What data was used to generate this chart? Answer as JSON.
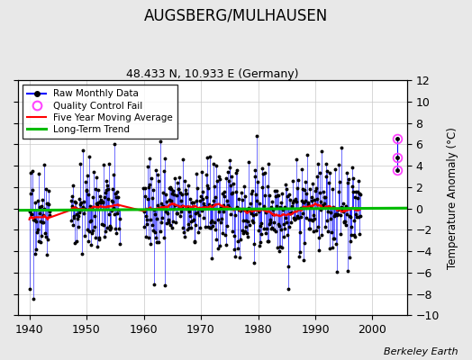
{
  "title": "AUGSBERG/MULHAUSEN",
  "subtitle": "48.433 N, 10.933 E (Germany)",
  "ylabel": "Temperature Anomaly (°C)",
  "credit": "Berkeley Earth",
  "xlim": [
    1938,
    2006
  ],
  "ylim": [
    -10,
    12
  ],
  "yticks": [
    -10,
    -8,
    -6,
    -4,
    -2,
    0,
    2,
    4,
    6,
    8,
    10,
    12
  ],
  "xticks": [
    1940,
    1950,
    1960,
    1970,
    1980,
    1990,
    2000
  ],
  "bg_color": "#e8e8e8",
  "plot_bg_color": "#ffffff",
  "grid_color": "#c8c8c8",
  "raw_color": "#0000ff",
  "ma_color": "#ff0000",
  "trend_color": "#00bb00",
  "qc_color": "#ff44ff",
  "seed": 42,
  "start_year": 1940,
  "end_year": 1997,
  "qc_year": 2004.3,
  "qc_values": [
    6.5,
    4.8,
    3.6
  ]
}
